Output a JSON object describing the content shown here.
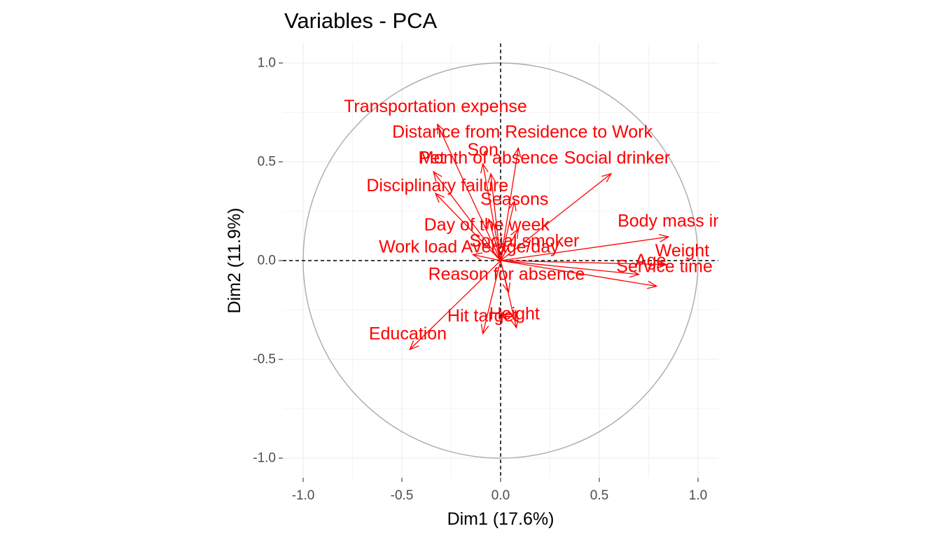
{
  "chart_data": {
    "type": "scatter",
    "title": "Variables - PCA",
    "xlabel": "Dim1 (17.6%)",
    "ylabel": "Dim2 (11.9%)",
    "xlim": [
      -1.1,
      1.1
    ],
    "ylim": [
      -1.1,
      1.1
    ],
    "xticks": [
      -1.0,
      -0.5,
      0.0,
      0.5,
      1.0
    ],
    "yticks": [
      -1.0,
      -0.5,
      0.0,
      0.5,
      1.0
    ],
    "x_tick_labels": [
      "-1.0",
      "-0.5",
      "0.0",
      "0.5",
      "1.0"
    ],
    "y_tick_labels": [
      "-1.0",
      "-0.5",
      "0.0",
      "0.5",
      "1.0"
    ],
    "grid": true,
    "unit_circle": true,
    "reference_lines": [
      0,
      0
    ],
    "colors": {
      "arrow": "#ff0000",
      "circle": "#aaaaaa",
      "grid": "#ebebeb",
      "reference": "#000000"
    },
    "variables": [
      {
        "name": "Transportation expense",
        "x": -0.32,
        "y": 0.69
      },
      {
        "name": "Distance from Residence to Work",
        "x": 0.09,
        "y": 0.57
      },
      {
        "name": "Son",
        "x": -0.09,
        "y": 0.49
      },
      {
        "name": "Pet",
        "x": -0.34,
        "y": 0.45
      },
      {
        "name": "Month of absence",
        "x": -0.05,
        "y": 0.44
      },
      {
        "name": "Social drinker",
        "x": 0.56,
        "y": 0.44
      },
      {
        "name": "Disciplinary failure",
        "x": -0.33,
        "y": 0.34
      },
      {
        "name": "Seasons",
        "x": 0.07,
        "y": 0.3
      },
      {
        "name": "Day of the week",
        "x": -0.06,
        "y": 0.21
      },
      {
        "name": "Social smoker",
        "x": 0.09,
        "y": 0.16
      },
      {
        "name": "Work load Average/day",
        "x": -0.14,
        "y": 0.03
      },
      {
        "name": "Body mass index",
        "x": 0.85,
        "y": 0.12
      },
      {
        "name": "Weight",
        "x": 0.84,
        "y": -0.02
      },
      {
        "name": "Age",
        "x": 0.7,
        "y": -0.07
      },
      {
        "name": "Service time",
        "x": 0.79,
        "y": -0.13
      },
      {
        "name": "Reason for absence",
        "x": 0.04,
        "y": -0.16
      },
      {
        "name": "Height",
        "x": 0.08,
        "y": -0.34
      },
      {
        "name": "Hit target",
        "x": -0.09,
        "y": -0.37
      },
      {
        "name": "Education",
        "x": -0.46,
        "y": -0.45
      }
    ],
    "labels": [
      {
        "text": "Transportation expense",
        "x": -0.33,
        "y": 0.78
      },
      {
        "text": "Distance from Residence to Work",
        "x": 0.11,
        "y": 0.65
      },
      {
        "text": "Son",
        "x": -0.09,
        "y": 0.56
      },
      {
        "text": "Pet",
        "x": -0.35,
        "y": 0.52
      },
      {
        "text": "Month of absence",
        "x": -0.06,
        "y": 0.52
      },
      {
        "text": "Social drinker",
        "x": 0.59,
        "y": 0.52
      },
      {
        "text": "Disciplinary failure",
        "x": -0.32,
        "y": 0.38
      },
      {
        "text": "Seasons",
        "x": 0.07,
        "y": 0.31
      },
      {
        "text": "Day of the week",
        "x": -0.07,
        "y": 0.18
      },
      {
        "text": "Social smoker",
        "x": 0.12,
        "y": 0.1
      },
      {
        "text": "Work load Average/day",
        "x": -0.16,
        "y": 0.07
      },
      {
        "text": "Body mass index",
        "x": 0.93,
        "y": 0.2
      },
      {
        "text": "Weight",
        "x": 0.92,
        "y": 0.05
      },
      {
        "text": "Age",
        "x": 0.76,
        "y": 0.0
      },
      {
        "text": "Service time",
        "x": 0.83,
        "y": -0.03
      },
      {
        "text": "Reason for absence",
        "x": 0.03,
        "y": -0.07
      },
      {
        "text": "Height",
        "x": 0.07,
        "y": -0.27
      },
      {
        "text": "Hit target",
        "x": -0.09,
        "y": -0.28
      },
      {
        "text": "Education",
        "x": -0.47,
        "y": -0.37
      }
    ]
  }
}
